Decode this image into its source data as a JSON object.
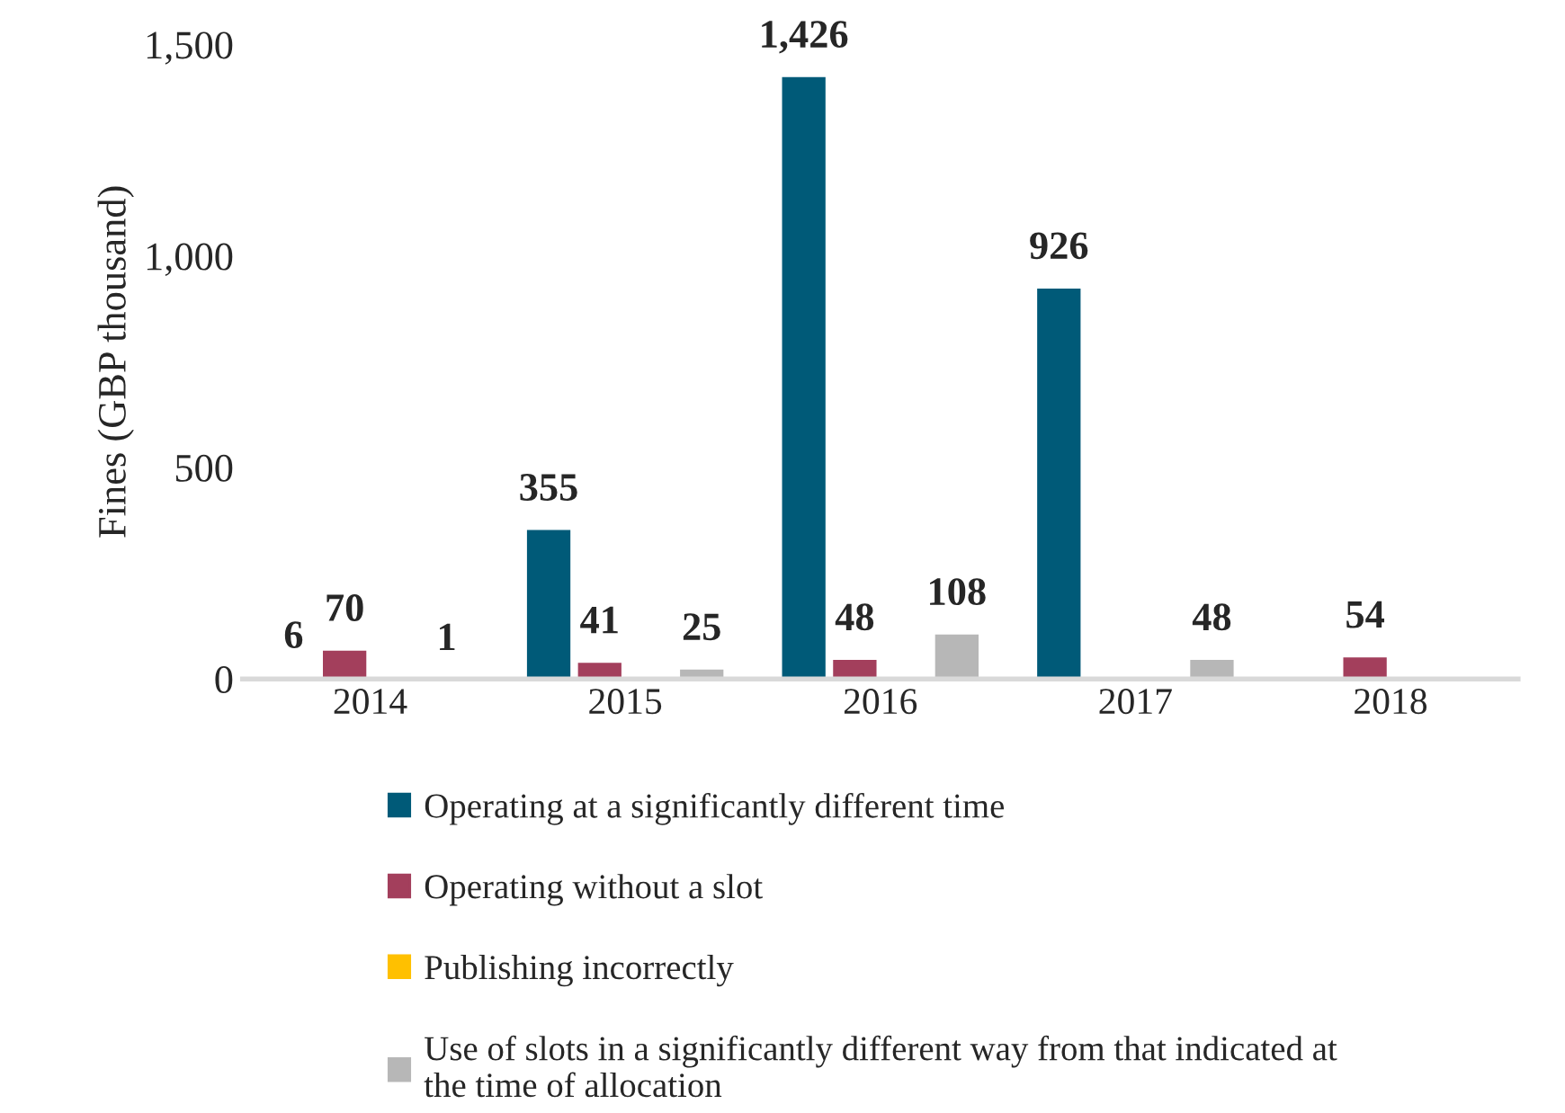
{
  "chart_data": {
    "type": "bar",
    "ylabel": "Fines (GBP thousand)",
    "categories": [
      "2014",
      "2015",
      "2016",
      "2017",
      "2018"
    ],
    "series": [
      {
        "name": "Operating at a significantly different time",
        "color": "#005a78",
        "values": [
          6,
          355,
          1426,
          926,
          null
        ],
        "value_labels": [
          "6",
          "355",
          "1,426",
          "926",
          null
        ]
      },
      {
        "name": "Operating without a slot",
        "color": "#a33f5c",
        "values": [
          70,
          41,
          48,
          null,
          54
        ],
        "value_labels": [
          "70",
          "41",
          "48",
          null,
          "54"
        ]
      },
      {
        "name": "Publishing incorrectly",
        "color": "#ffc000",
        "values": [
          null,
          null,
          null,
          null,
          null
        ]
      },
      {
        "name": "Use of slots in a significantly different way from that indicated at the time of allocation",
        "color": "#b7b7b7",
        "values": [
          1,
          25,
          108,
          48,
          null
        ],
        "value_labels": [
          "1",
          "25",
          "108",
          "48",
          null
        ]
      }
    ],
    "ylim": [
      0,
      1500
    ],
    "yticks": [
      0,
      500,
      {
        "value": 1000,
        "label": "1,000"
      },
      {
        "value": 1500,
        "label": "1,500"
      }
    ],
    "grid": false,
    "legend": "bottom"
  }
}
